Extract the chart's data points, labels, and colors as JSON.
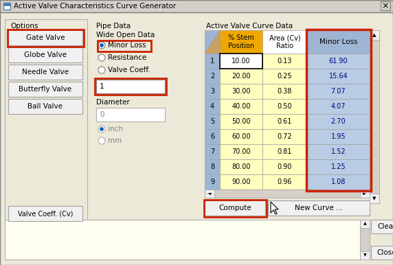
{
  "title": "Active Valve Characteristics Curve Generator",
  "bg_color": "#ece9d8",
  "inner_bg": "#ece9d8",
  "options_label": "Options",
  "pipe_data_label": "Pipe Data",
  "active_valve_label": "Active Valve Curve Data",
  "wide_open_label": "Wide Open Data",
  "diameter_label": "Diameter",
  "valve_buttons": [
    "Gate Valve",
    "Globe Valve",
    "Needle Valve",
    "Butterfly Valve",
    "Ball Valve"
  ],
  "radio_options": [
    "Minor Loss",
    "Resistance",
    "Valve Coeff."
  ],
  "selected_radio": 0,
  "input_box_value": "1",
  "diameter_value": "0",
  "diameter_units": [
    "inch",
    "mm"
  ],
  "diameter_unit_selected": "inch",
  "bottom_buttons": [
    "Valve Coeff. (Cv)"
  ],
  "action_buttons": [
    "Compute",
    "New Curve ..."
  ],
  "side_buttons": [
    "Clear",
    "Close"
  ],
  "table_headers": [
    "",
    "% Stem\nPosition",
    "Area (Cv)\nRatio",
    "Minor Loss"
  ],
  "table_rows": [
    [
      1,
      "10.00",
      "0.13",
      "61.90"
    ],
    [
      2,
      "20.00",
      "0.25",
      "15.64"
    ],
    [
      3,
      "30.00",
      "0.38",
      "7.07"
    ],
    [
      4,
      "40.00",
      "0.50",
      "4.07"
    ],
    [
      5,
      "50.00",
      "0.61",
      "2.70"
    ],
    [
      6,
      "60.00",
      "0.72",
      "1.95"
    ],
    [
      7,
      "70.00",
      "0.81",
      "1.52"
    ],
    [
      8,
      "80.00",
      "0.90",
      "1.25"
    ],
    [
      9,
      "90.00",
      "0.96",
      "1.08"
    ]
  ],
  "header_bg_row": "#f0a000",
  "header_bg_idx": "#9eb6d4",
  "row_bg_yellow": "#ffffc0",
  "minor_loss_bg": "#b8cce4",
  "minor_loss_header_bg": "#9eb6d4",
  "red_highlight": "#cc2200",
  "yellow_text_area_bg": "#fffff0",
  "table_text_dark": "#000000",
  "minor_loss_text": "#000080"
}
